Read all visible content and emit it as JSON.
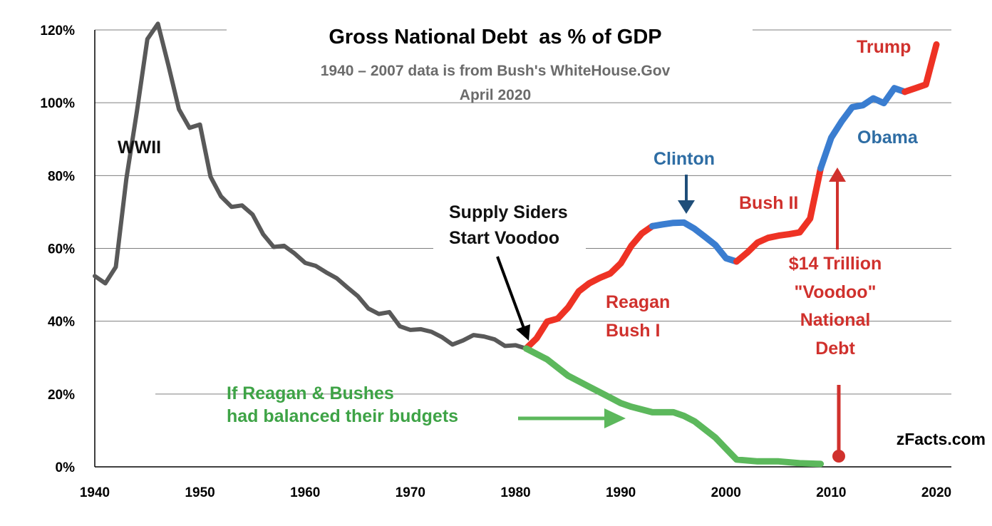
{
  "chart_data": {
    "type": "line",
    "title": "Gross National Debt  as % of GDP",
    "subtitle": "1940 – 2007 data is from Bush's WhiteHouse.Gov",
    "date_note": "April 2020",
    "source_label": "zFacts.com",
    "xlim": [
      1940,
      2022
    ],
    "ylim": [
      0,
      120
    ],
    "x_ticks": [
      1940,
      1950,
      1960,
      1970,
      1980,
      1990,
      2000,
      2010,
      2020
    ],
    "y_ticks": [
      {
        "value": 0,
        "label": "0%"
      },
      {
        "value": 20,
        "label": "20%"
      },
      {
        "value": 40,
        "label": "40%"
      },
      {
        "value": 60,
        "label": "60%"
      },
      {
        "value": 80,
        "label": "80%"
      },
      {
        "value": 100,
        "label": "100%"
      },
      {
        "value": 120,
        "label": "120%"
      }
    ],
    "grid": "horizontal",
    "series": [
      {
        "color": "#595959",
        "x": [
          1940,
          1941,
          1942,
          1943,
          1944,
          1945,
          1946,
          1947,
          1948,
          1949,
          1950,
          1951,
          1952,
          1953,
          1954,
          1955,
          1956,
          1957,
          1958,
          1959,
          1960,
          1961,
          1962,
          1963,
          1964,
          1965,
          1966,
          1967,
          1968,
          1969,
          1970,
          1971,
          1972,
          1973,
          1974,
          1975,
          1976,
          1977,
          1978,
          1979,
          1980,
          1981
        ],
        "y": [
          52.4,
          50.4,
          54.9,
          79.1,
          97.6,
          117.5,
          121.7,
          110.3,
          98.2,
          93.1,
          94.0,
          79.7,
          74.3,
          71.4,
          71.8,
          69.3,
          63.9,
          60.4,
          60.7,
          58.6,
          56.0,
          55.2,
          53.4,
          51.8,
          49.3,
          46.9,
          43.5,
          42.0,
          42.5,
          38.6,
          37.6,
          37.8,
          37.1,
          35.6,
          33.6,
          34.7,
          36.2,
          35.8,
          35.0,
          33.2,
          33.4,
          32.5
        ]
      },
      {
        "color": "#ee3224",
        "x": [
          1981,
          1982,
          1983,
          1984,
          1985,
          1986,
          1987,
          1988,
          1989,
          1990,
          1991,
          1992,
          1993
        ],
        "y": [
          32.5,
          35.3,
          39.9,
          40.7,
          43.8,
          48.2,
          50.4,
          51.9,
          53.1,
          55.9,
          60.7,
          64.1,
          66.1
        ]
      },
      {
        "color": "#3a7dd0",
        "x": [
          1993,
          1994,
          1995,
          1996,
          1997,
          1998,
          1999,
          2000,
          2001
        ],
        "y": [
          66.1,
          66.6,
          67.0,
          67.1,
          65.4,
          63.2,
          60.9,
          57.3,
          56.4
        ]
      },
      {
        "color": "#ee3224",
        "x": [
          2001,
          2002,
          2003,
          2004,
          2005,
          2006,
          2007,
          2008,
          2009
        ],
        "y": [
          56.4,
          58.8,
          61.6,
          62.9,
          63.5,
          63.9,
          64.4,
          68.2,
          82.0
        ]
      },
      {
        "color": "#3a7dd0",
        "x": [
          2009,
          2010,
          2011,
          2012,
          2013,
          2014,
          2015,
          2016,
          2017
        ],
        "y": [
          82.0,
          90.4,
          94.9,
          98.8,
          99.3,
          101.2,
          99.9,
          104.0,
          103.0
        ]
      },
      {
        "color": "#ee3224",
        "x": [
          2017,
          2018,
          2019,
          2020
        ],
        "y": [
          103.0,
          104.0,
          105.0,
          116.0
        ]
      },
      {
        "color": "#5cb85c",
        "x": [
          1981,
          1983,
          1985,
          1987,
          1989,
          1990,
          1991,
          1993,
          1995,
          1996,
          1997,
          1999,
          2001,
          2003,
          2005,
          2007,
          2009
        ],
        "y": [
          32.5,
          29.5,
          25.0,
          22.0,
          19.0,
          17.5,
          16.5,
          15.0,
          15.0,
          14.0,
          12.5,
          8.0,
          2.0,
          1.5,
          1.5,
          1.0,
          0.8
        ]
      }
    ],
    "annotations": [
      {
        "key": "wwii",
        "text": "WWII",
        "color": "#111111"
      },
      {
        "key": "supply1",
        "text": "Supply Siders",
        "color": "#111111"
      },
      {
        "key": "supply2",
        "text": "Start Voodoo",
        "color": "#111111"
      },
      {
        "key": "clinton",
        "text": "Clinton",
        "color": "#2e6da4"
      },
      {
        "key": "obama",
        "text": "Obama",
        "color": "#2e6da4"
      },
      {
        "key": "trump",
        "text": "Trump",
        "color": "#d0312d"
      },
      {
        "key": "bush2",
        "text": "Bush II",
        "color": "#d0312d"
      },
      {
        "key": "reagan",
        "text": "Reagan",
        "color": "#d0312d"
      },
      {
        "key": "bush1",
        "text": "Bush I",
        "color": "#d0312d"
      },
      {
        "key": "voodoo1",
        "text": "$14 Trillion",
        "color": "#d0312d"
      },
      {
        "key": "voodoo2",
        "text": "\"Voodoo\"",
        "color": "#d0312d"
      },
      {
        "key": "voodoo3",
        "text": "National",
        "color": "#d0312d"
      },
      {
        "key": "voodoo4",
        "text": "Debt",
        "color": "#d0312d"
      },
      {
        "key": "balanced1",
        "text": "If Reagan & Bushes",
        "color": "#3ea346"
      },
      {
        "key": "balanced2",
        "text": "had balanced their budgets",
        "color": "#3ea346"
      }
    ]
  }
}
